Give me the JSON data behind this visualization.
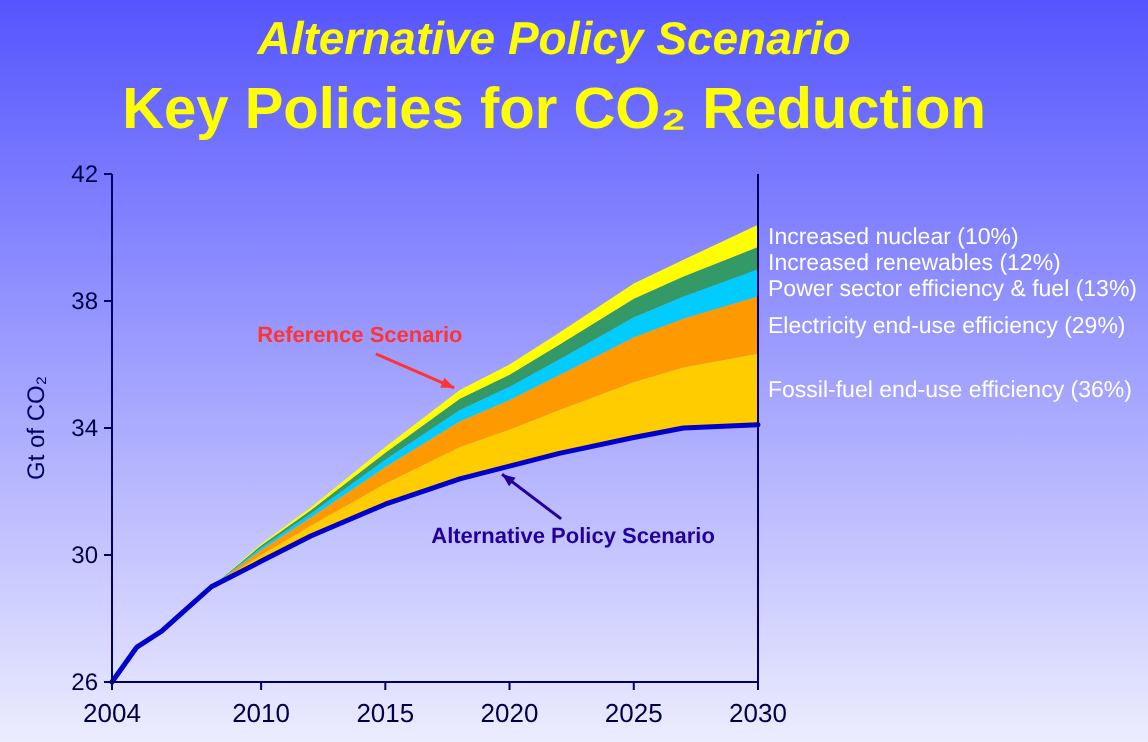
{
  "chart_data": {
    "type": "area",
    "title": "Alternative Policy Scenario",
    "subtitle": "Key Policies for CO₂ Reduction",
    "ylabel": "Gt of CO₂",
    "legend": false,
    "grid": false,
    "x": [
      2004,
      2005,
      2006,
      2007,
      2008,
      2010,
      2012,
      2015,
      2018,
      2020,
      2022,
      2025,
      2027,
      2030
    ],
    "xlim": [
      2004,
      2030
    ],
    "xticks": [
      2004,
      2010,
      2015,
      2020,
      2025,
      2030
    ],
    "ylim": [
      26,
      42
    ],
    "yticks": [
      26,
      30,
      34,
      38,
      42
    ],
    "series": [
      {
        "type": "line",
        "color": "#0000cc",
        "values": [
          26,
          27.1,
          27.6,
          28.3,
          29.0,
          29.8,
          30.6,
          31.6,
          32.4,
          32.8,
          33.2,
          33.7,
          34.0,
          34.1
        ]
      },
      {
        "name": "Fossil-fuel end-use efficiency (36%)",
        "color": "#ffcc00",
        "values": [
          26,
          27.1,
          27.6,
          28.3,
          29.0,
          30.0,
          30.92,
          32.25,
          33.4,
          33.95,
          34.57,
          35.45,
          35.91,
          36.35
        ]
      },
      {
        "name": "Electricity end-use efficiency (29%)",
        "color": "#ff9900",
        "values": [
          26,
          27.1,
          27.6,
          28.3,
          29.0,
          30.16,
          31.18,
          32.77,
          34.21,
          34.88,
          35.67,
          36.86,
          37.45,
          38.15
        ]
      },
      {
        "name": "Power sector efficiency & fuel (13%)",
        "color": "#00ccff",
        "values": [
          26,
          27.1,
          27.6,
          28.3,
          29.0,
          30.23,
          31.3,
          33.0,
          34.57,
          35.3,
          36.16,
          37.49,
          38.14,
          39.0
        ]
      },
      {
        "name": "Increased renewables (12%)",
        "color": "#339966",
        "values": [
          26,
          27.1,
          27.6,
          28.3,
          29.0,
          30.3,
          31.41,
          33.22,
          34.92,
          35.68,
          36.62,
          38.07,
          38.77,
          39.7
        ]
      },
      {
        "name": "Increased nuclear (10%)",
        "color": "#ffff00",
        "values": [
          26,
          27.1,
          27.6,
          28.3,
          29.0,
          30.35,
          31.5,
          33.4,
          35.2,
          36.0,
          37.0,
          38.55,
          39.3,
          40.4
        ]
      }
    ],
    "annotations": [
      {
        "text": "Reference Scenario",
        "x": 2018,
        "y": 35.2
      },
      {
        "text": "Alternative Policy Scenario",
        "x": 2019.5,
        "y": 32.65
      }
    ]
  }
}
